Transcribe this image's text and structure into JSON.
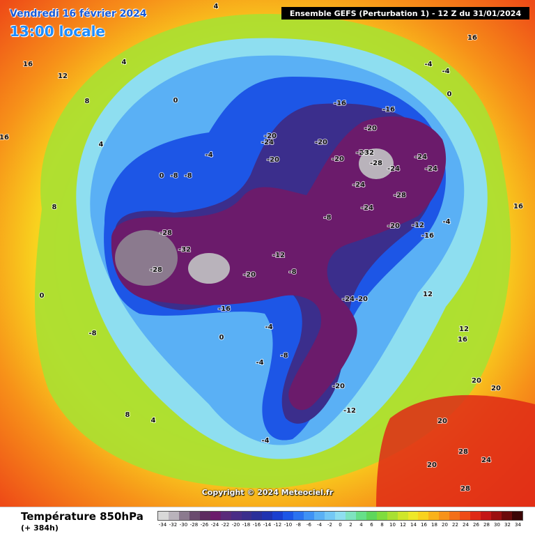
{
  "header": {
    "date": "Vendredi 16 février 2024",
    "time": "13:00 locale",
    "run": "Ensemble GEFS  (Perturbation 1)  -  12 Z du 31/01/2024"
  },
  "copyright": "Copyright © 2024 Meteociel.fr",
  "legend": {
    "title": "Température 850hPa",
    "lead": "(+ 384h)",
    "scale": [
      {
        "value": "-34",
        "color": "#d8d8d8"
      },
      {
        "value": "-32",
        "color": "#b9b3bb"
      },
      {
        "value": "-30",
        "color": "#8b7a8e"
      },
      {
        "value": "-28",
        "color": "#6a4b6e"
      },
      {
        "value": "-26",
        "color": "#5d2c60"
      },
      {
        "value": "-24",
        "color": "#6b1b6b"
      },
      {
        "value": "-22",
        "color": "#5a2a7a"
      },
      {
        "value": "-20",
        "color": "#4a2c86"
      },
      {
        "value": "-18",
        "color": "#3b2e8c"
      },
      {
        "value": "-16",
        "color": "#2a2f99"
      },
      {
        "value": "-14",
        "color": "#1f33b0"
      },
      {
        "value": "-12",
        "color": "#1a3fcf"
      },
      {
        "value": "-10",
        "color": "#1d56e6"
      },
      {
        "value": "-8",
        "color": "#2b73f0"
      },
      {
        "value": "-6",
        "color": "#3f92f5"
      },
      {
        "value": "-4",
        "color": "#5ab0f5"
      },
      {
        "value": "-2",
        "color": "#74c8f5"
      },
      {
        "value": "0",
        "color": "#8edef0"
      },
      {
        "value": "2",
        "color": "#7ee3c0"
      },
      {
        "value": "4",
        "color": "#66df8a"
      },
      {
        "value": "6",
        "color": "#5ed65c"
      },
      {
        "value": "8",
        "color": "#7fdc3e"
      },
      {
        "value": "10",
        "color": "#a8e032"
      },
      {
        "value": "12",
        "color": "#cfe62a"
      },
      {
        "value": "14",
        "color": "#eee828"
      },
      {
        "value": "16",
        "color": "#f8d21e"
      },
      {
        "value": "18",
        "color": "#f9b21a"
      },
      {
        "value": "20",
        "color": "#f79219"
      },
      {
        "value": "22",
        "color": "#f36f18"
      },
      {
        "value": "24",
        "color": "#ee4b17"
      },
      {
        "value": "26",
        "color": "#df2a16"
      },
      {
        "value": "28",
        "color": "#c41616"
      },
      {
        "value": "30",
        "color": "#9b0f10"
      },
      {
        "value": "32",
        "color": "#6b0a0a"
      },
      {
        "value": "34",
        "color": "#3a0505"
      }
    ]
  },
  "map": {
    "isotherm_labels": [
      "4",
      "16",
      "12",
      "8",
      "4",
      "0",
      "4",
      "16",
      "8",
      "16",
      "0",
      "-4",
      "-4",
      "-8",
      "-8",
      "0",
      "-4",
      "-20",
      "-24",
      "-20",
      "-20",
      "-28",
      "-20",
      "-16",
      "-16",
      "-8",
      "-20",
      "-24",
      "-32",
      "-28",
      "-24",
      "-24",
      "-24",
      "-28",
      "-24",
      "-12",
      "-20",
      "-16",
      "-4",
      "-28",
      "-32",
      "-28",
      "-20",
      "-12",
      "-8",
      "-16",
      "-24",
      "-20",
      "-8",
      "-4",
      "-8",
      "-4",
      "0",
      "-20",
      "-12",
      "-4",
      "16",
      "20",
      "20",
      "24",
      "28",
      "28",
      "20",
      "12",
      "12",
      "16",
      "20",
      "8",
      "4",
      "0"
    ]
  }
}
